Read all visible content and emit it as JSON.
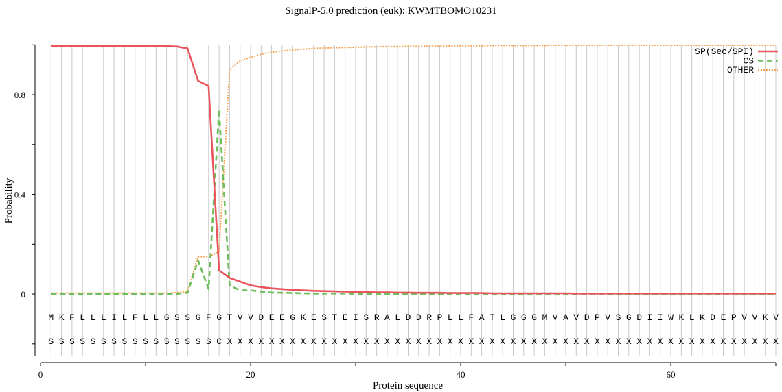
{
  "chart_data": {
    "type": "line",
    "title": "SignalP-5.0 prediction (euk):  KWMTBOMO10231",
    "xlabel": "Protein sequence",
    "ylabel": "Probability",
    "xlim": [
      0,
      70
    ],
    "ylim": [
      -0.25,
      1.02
    ],
    "x_ticks": [
      0,
      20,
      40,
      60
    ],
    "y_ticks": [
      0,
      0.4,
      0.8
    ],
    "y_tick_labels": [
      "0",
      "0.4",
      "0.8"
    ],
    "grid": "vertical lines at each residue",
    "legend_position": "top-right",
    "sequence": [
      "M",
      "K",
      "F",
      "L",
      "L",
      "L",
      "I",
      "L",
      "F",
      "L",
      "L",
      "G",
      "S",
      "S",
      "G",
      "F",
      "G",
      "T",
      "V",
      "V",
      "D",
      "E",
      "E",
      "G",
      "K",
      "E",
      "S",
      "T",
      "E",
      "I",
      "S",
      "R",
      "A",
      "L",
      "D",
      "D",
      "R",
      "P",
      "L",
      "L",
      "F",
      "A",
      "T",
      "L",
      "G",
      "G",
      "G",
      "M",
      "V",
      "A",
      "V",
      "D",
      "P",
      "V",
      "S",
      "G",
      "D",
      "I",
      "I",
      "W",
      "K",
      "L",
      "K",
      "D",
      "E",
      "P",
      "V",
      "V",
      "K",
      "V"
    ],
    "annotation": [
      "S",
      "S",
      "S",
      "S",
      "S",
      "S",
      "S",
      "S",
      "S",
      "S",
      "S",
      "S",
      "S",
      "S",
      "S",
      "S",
      "C",
      "X",
      "X",
      "X",
      "X",
      "X",
      "X",
      "X",
      "X",
      "X",
      "X",
      "X",
      "X",
      "X",
      "X",
      "X",
      "X",
      "X",
      "X",
      "X",
      "X",
      "X",
      "X",
      "X",
      "X",
      "X",
      "X",
      "X",
      "X",
      "X",
      "X",
      "X",
      "X",
      "X",
      "X",
      "X",
      "X",
      "X",
      "X",
      "X",
      "X",
      "X",
      "X",
      "X",
      "X",
      "X",
      "X",
      "X",
      "X",
      "X",
      "X",
      "X",
      "X",
      "X"
    ],
    "series": [
      {
        "name": "SP(Sec/SPI)",
        "color": "#e8555d",
        "style": "solid",
        "values": [
          0.995,
          0.995,
          0.995,
          0.995,
          0.995,
          0.995,
          0.995,
          0.995,
          0.995,
          0.995,
          0.995,
          0.995,
          0.993,
          0.985,
          0.855,
          0.835,
          0.095,
          0.065,
          0.05,
          0.035,
          0.028,
          0.023,
          0.02,
          0.017,
          0.015,
          0.013,
          0.012,
          0.011,
          0.01,
          0.009,
          0.008,
          0.007,
          0.007,
          0.006,
          0.006,
          0.005,
          0.005,
          0.005,
          0.004,
          0.004,
          0.004,
          0.004,
          0.003,
          0.003,
          0.003,
          0.003,
          0.003,
          0.003,
          0.003,
          0.003,
          0.002,
          0.002,
          0.002,
          0.002,
          0.002,
          0.002,
          0.002,
          0.002,
          0.002,
          0.002,
          0.002,
          0.002,
          0.002,
          0.002,
          0.002,
          0.002,
          0.002,
          0.002,
          0.002,
          0.002
        ]
      },
      {
        "name": "CS",
        "color": "#6cbf5a",
        "style": "dashed",
        "values": [
          0.001,
          0.001,
          0.001,
          0.001,
          0.001,
          0.001,
          0.001,
          0.001,
          0.001,
          0.001,
          0.001,
          0.001,
          0.001,
          0.005,
          0.135,
          0.02,
          0.74,
          0.035,
          0.015,
          0.015,
          0.01,
          0.006,
          0.005,
          0.004,
          0.003,
          0.002,
          0.002,
          0.002,
          0.002,
          0.001,
          0.001,
          0.001,
          0.001,
          0.001,
          0.001,
          0.001,
          0.001,
          0.001,
          0.001,
          0.001,
          0.001,
          0.001,
          0.001,
          0.001,
          0.001,
          0.001,
          0.001,
          0.001,
          0.001,
          0.001,
          0.001,
          0.001,
          0.001,
          0.001,
          0.001,
          0.001,
          0.001,
          0.001,
          0.001,
          0.001,
          0.001,
          0.001,
          0.001,
          0.001,
          0.001,
          0.001,
          0.001,
          0.001,
          0.001,
          0.001
        ]
      },
      {
        "name": "OTHER",
        "color": "#f5a04a",
        "style": "dotted",
        "values": [
          0.004,
          0.004,
          0.004,
          0.004,
          0.004,
          0.004,
          0.004,
          0.004,
          0.004,
          0.004,
          0.004,
          0.004,
          0.006,
          0.01,
          0.15,
          0.15,
          0.17,
          0.9,
          0.935,
          0.95,
          0.962,
          0.97,
          0.975,
          0.979,
          0.982,
          0.985,
          0.987,
          0.988,
          0.989,
          0.99,
          0.991,
          0.992,
          0.993,
          0.993,
          0.994,
          0.994,
          0.995,
          0.995,
          0.995,
          0.996,
          0.996,
          0.996,
          0.997,
          0.997,
          0.997,
          0.997,
          0.997,
          0.997,
          0.998,
          0.998,
          0.998,
          0.998,
          0.998,
          0.998,
          0.998,
          0.998,
          0.998,
          0.998,
          0.998,
          0.998,
          0.998,
          0.998,
          0.998,
          0.998,
          0.998,
          0.998,
          0.998,
          0.998,
          0.998,
          0.998
        ]
      }
    ]
  }
}
